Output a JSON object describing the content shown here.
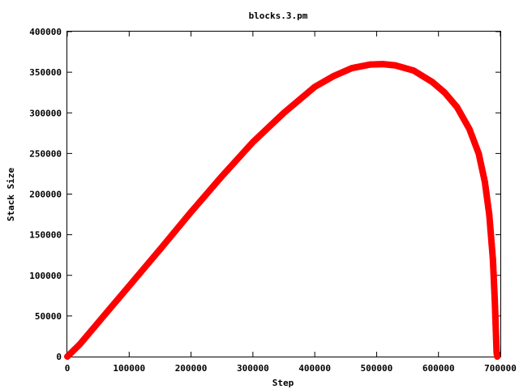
{
  "chart_data": {
    "type": "scatter",
    "title": "blocks.3.pm",
    "xlabel": "Step",
    "ylabel": "Stack Size",
    "xlim": [
      0,
      700000
    ],
    "ylim": [
      0,
      400000
    ],
    "xticks": [
      0,
      100000,
      200000,
      300000,
      400000,
      500000,
      600000,
      700000
    ],
    "xtick_labels": [
      "0",
      "100000",
      "200000",
      "300000",
      "400000",
      "500000",
      "600000",
      "700000"
    ],
    "yticks": [
      0,
      50000,
      100000,
      150000,
      200000,
      250000,
      300000,
      350000,
      400000
    ],
    "ytick_labels": [
      "0",
      "50000",
      "100000",
      "150000",
      "200000",
      "250000",
      "300000",
      "350000",
      "400000"
    ],
    "grid": false,
    "marker": "+",
    "color": "#ff0000",
    "series": [
      {
        "x": [
          0,
          20000,
          50000,
          100000,
          150000,
          200000,
          250000,
          300000,
          350000,
          400000,
          430000,
          460000,
          490000,
          510000,
          530000,
          560000,
          590000,
          610000,
          630000,
          650000,
          665000,
          675000,
          682000,
          688000,
          691000,
          693000,
          694000,
          695000
        ],
        "y": [
          0,
          15000,
          42000,
          87000,
          132000,
          178000,
          222000,
          264000,
          300000,
          332000,
          345000,
          355000,
          359500,
          360000,
          358500,
          352000,
          338000,
          325000,
          307000,
          280000,
          250000,
          215000,
          175000,
          120000,
          70000,
          25000,
          5000,
          0
        ]
      }
    ]
  }
}
